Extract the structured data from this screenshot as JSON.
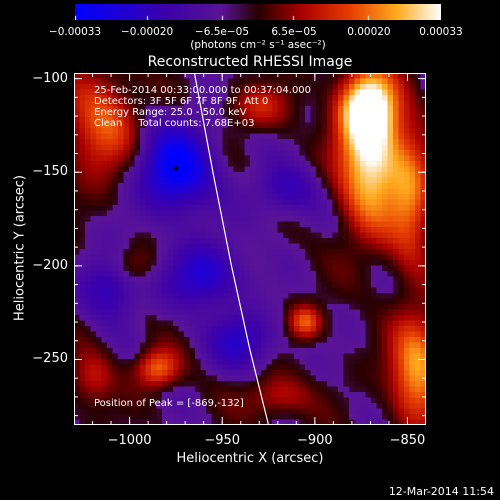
{
  "chart_data": {
    "type": "heatmap",
    "title": "Reconstructed RHESSI Image",
    "xlabel": "Heliocentric X (arcsec)",
    "ylabel": "Heliocentric Y (arcsec)",
    "xlim": [
      -1030,
      -840
    ],
    "ylim": [
      -285,
      -97
    ],
    "x_ticks": [
      "−1000",
      "−950",
      "−900",
      "−850"
    ],
    "x_tick_values": [
      -1000,
      -950,
      -900,
      -850
    ],
    "y_ticks": [
      "−100",
      "−150",
      "−200",
      "−250"
    ],
    "y_tick_values": [
      -100,
      -150,
      -200,
      -250
    ],
    "colorbar": {
      "range": [
        -0.00033,
        0.00033
      ],
      "tick_labels": [
        "−0.00033",
        "−0.00020",
        "−6.5e−05",
        "6.5e−05",
        "0.00020",
        "0.00033"
      ],
      "tick_values": [
        -0.00033,
        -0.0002,
        -6.5e-05,
        6.5e-05,
        0.0002,
        0.00033
      ],
      "units": "(photons cm⁻² s⁻¹ asec⁻²)"
    },
    "annotations": {
      "time_range": "25-Feb-2014 00:33:00.000 to 00:37:04.000",
      "detectors": "Detectors: 3F 5F 6F 7F 8F 9F, Att 0",
      "energy": "Energy Range: 25.0 - 50.0 keV",
      "clean": "Clean     Total counts: 7.68E+03",
      "peak": "Position of Peak = [-869,-132]"
    },
    "peak_position": [
      -869,
      -132
    ],
    "hot_regions": [
      {
        "x": -870,
        "y": -140,
        "intensity": 1.0,
        "sx": 12,
        "sy": 28
      },
      {
        "x": -872,
        "y": -115,
        "intensity": 0.7,
        "sx": 10,
        "sy": 12
      },
      {
        "x": -848,
        "y": -165,
        "intensity": 0.55,
        "sx": 8,
        "sy": 25
      },
      {
        "x": -845,
        "y": -255,
        "intensity": 0.75,
        "sx": 10,
        "sy": 20
      },
      {
        "x": -1015,
        "y": -125,
        "intensity": 0.55,
        "sx": 14,
        "sy": 20
      },
      {
        "x": -985,
        "y": -255,
        "intensity": 0.6,
        "sx": 8,
        "sy": 7
      },
      {
        "x": -905,
        "y": -230,
        "intensity": 0.55,
        "sx": 6,
        "sy": 6
      },
      {
        "x": -930,
        "y": -115,
        "intensity": 0.35,
        "sx": 12,
        "sy": 8
      },
      {
        "x": -1020,
        "y": -260,
        "intensity": 0.35,
        "sx": 8,
        "sy": 10
      },
      {
        "x": -920,
        "y": -270,
        "intensity": 0.35,
        "sx": 12,
        "sy": 8
      },
      {
        "x": -1000,
        "y": -200,
        "intensity": 0.3,
        "sx": 10,
        "sy": 8
      }
    ],
    "cold_regions": [
      {
        "x": -975,
        "y": -148,
        "intensity": 0.9,
        "sx": 14,
        "sy": 16
      },
      {
        "x": -960,
        "y": -205,
        "intensity": 0.6,
        "sx": 14,
        "sy": 12
      },
      {
        "x": -1010,
        "y": -210,
        "intensity": 0.55,
        "sx": 10,
        "sy": 12
      },
      {
        "x": -940,
        "y": -240,
        "intensity": 0.5,
        "sx": 12,
        "sy": 10
      },
      {
        "x": -915,
        "y": -160,
        "intensity": 0.4,
        "sx": 12,
        "sy": 10
      }
    ],
    "limb_curve": [
      [
        -965,
        -97
      ],
      [
        -955,
        -150
      ],
      [
        -945,
        -200
      ],
      [
        -935,
        -245
      ],
      [
        -925,
        -285
      ]
    ]
  },
  "footer": {
    "date": "12-Mar-2014 11:54"
  }
}
